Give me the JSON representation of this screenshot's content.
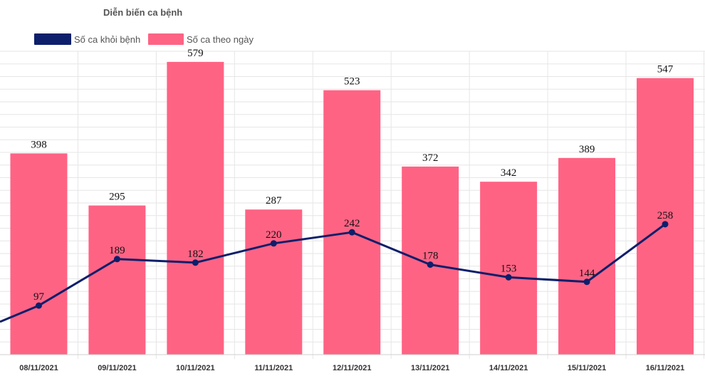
{
  "chart_data": {
    "type": "bar",
    "title": "Diễn biến ca bệnh",
    "categories": [
      "08/11/2021",
      "09/11/2021",
      "10/11/2021",
      "11/11/2021",
      "12/11/2021",
      "13/11/2021",
      "14/11/2021",
      "15/11/2021",
      "16/11/2021"
    ],
    "series": [
      {
        "name": "Số ca khỏi bệnh",
        "type": "line",
        "color": "#0d1f6b",
        "values": [
          97,
          189,
          182,
          220,
          242,
          178,
          153,
          144,
          258
        ],
        "extends_left_to": 65
      },
      {
        "name": "Số ca theo ngày",
        "type": "bar",
        "color": "#ff6384",
        "values": [
          398,
          295,
          579,
          287,
          523,
          372,
          342,
          389,
          547
        ]
      }
    ],
    "xlabel": "",
    "ylabel": "",
    "ylim": [
      0,
      600
    ],
    "grid": true,
    "legend": "top-left"
  }
}
